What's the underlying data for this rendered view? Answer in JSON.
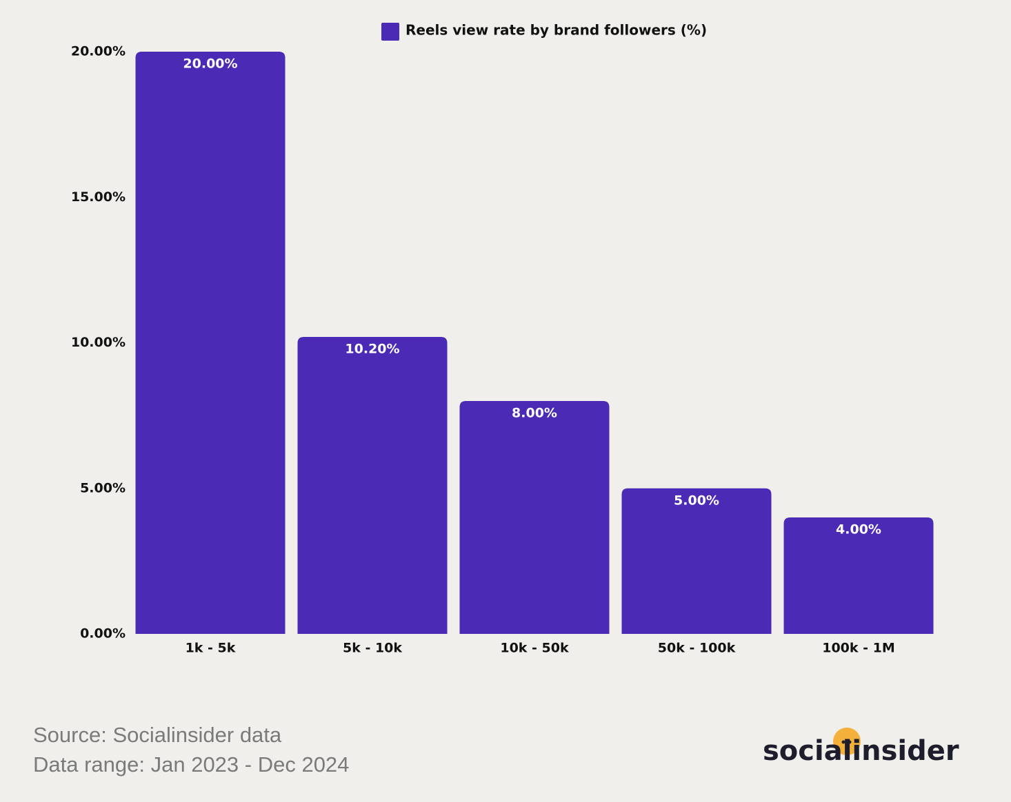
{
  "chart_data": {
    "type": "bar",
    "categories": [
      "1k - 5k",
      "5k - 10k",
      "10k - 50k",
      "50k - 100k",
      "100k - 1M"
    ],
    "series": [
      {
        "name": "Reels view rate by brand followers (%)",
        "color": "#4b2bb6",
        "values": [
          20,
          10.2,
          8,
          5,
          4
        ],
        "value_labels": [
          "20.00%",
          "10.20%",
          "8.00%",
          "5.00%",
          "4.00%"
        ]
      }
    ],
    "ylim": [
      0,
      20
    ],
    "yticks": [
      {
        "value": 0,
        "label": "0.00%"
      },
      {
        "value": 5,
        "label": "5.00%"
      },
      {
        "value": 10,
        "label": "10.00%"
      },
      {
        "value": 15,
        "label": "15.00%"
      },
      {
        "value": 20,
        "label": "20.00%"
      }
    ],
    "grid": false,
    "legend": "top"
  },
  "footer": {
    "source": "Source: Socialinsider data",
    "range": "Data range: Jan 2023 - Dec 2024",
    "logo": "socialinsider"
  }
}
